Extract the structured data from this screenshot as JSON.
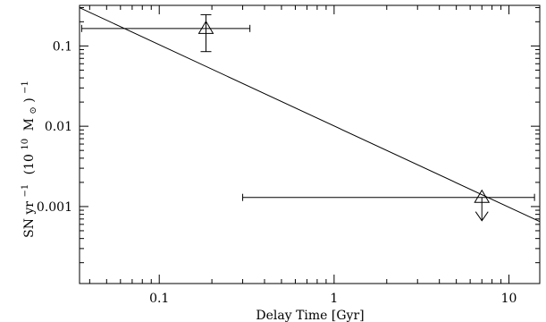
{
  "chart_data": {
    "type": "scatter",
    "xlabel": "Delay Time [Gyr]",
    "ylabel": {
      "base": "SN yr",
      "exp1": "−1",
      "mid": "(10",
      "exp2": "10",
      "unit": "M",
      "sun": "⊙",
      "close": ")",
      "exp3": "−1"
    },
    "x_scale": "log",
    "y_scale": "log",
    "xlim": [
      0.035,
      15
    ],
    "ylim": [
      0.00011,
      0.32
    ],
    "x_ticks": [
      {
        "value": 0.1,
        "label": "0.1"
      },
      {
        "value": 1,
        "label": "1"
      },
      {
        "value": 10,
        "label": "10"
      }
    ],
    "y_ticks": [
      {
        "value": 0.1,
        "label": "0.1"
      },
      {
        "value": 0.01,
        "label": "0.01"
      },
      {
        "value": 0.001,
        "label": "0.001"
      }
    ],
    "points": [
      {
        "x": 0.185,
        "y": 0.165,
        "xerr": [
          0.036,
          0.33
        ],
        "yerr": [
          0.085,
          0.245
        ],
        "marker": "triangle",
        "upper_limit": false
      },
      {
        "x": 7.0,
        "y": 0.0013,
        "xerr": [
          0.3,
          14.0
        ],
        "yerr": null,
        "marker": "triangle",
        "upper_limit": true
      }
    ],
    "fit_line": {
      "x": [
        0.035,
        15
      ],
      "y": [
        0.3,
        0.00065
      ]
    },
    "grid": false,
    "legend": "none"
  }
}
